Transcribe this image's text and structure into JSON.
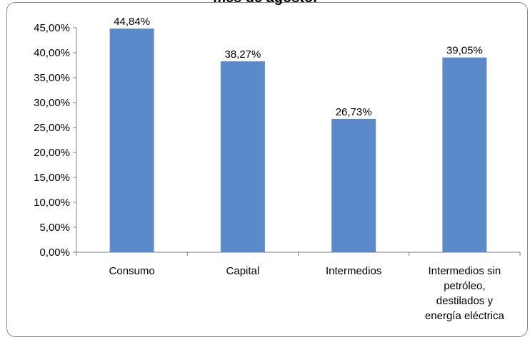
{
  "chart_data": {
    "type": "bar",
    "title": "mes de agosto.",
    "xlabel": "",
    "ylabel": "",
    "ylim": [
      0,
      45
    ],
    "yticks": [
      "0,00%",
      "5,00%",
      "10,00%",
      "15,00%",
      "20,00%",
      "25,00%",
      "30,00%",
      "35,00%",
      "40,00%",
      "45,00%"
    ],
    "grid": false,
    "categories": [
      [
        "Consumo"
      ],
      [
        "Capital"
      ],
      [
        "Intermedios"
      ],
      [
        "Intermedios sin",
        "petróleo,",
        "destilados y",
        "energía eléctrica"
      ]
    ],
    "values": [
      44.84,
      38.27,
      26.73,
      39.05
    ],
    "data_labels": [
      "44,84%",
      "38,27%",
      "26,73%",
      "39,05%"
    ],
    "bar_color": "#5a8ac9"
  }
}
